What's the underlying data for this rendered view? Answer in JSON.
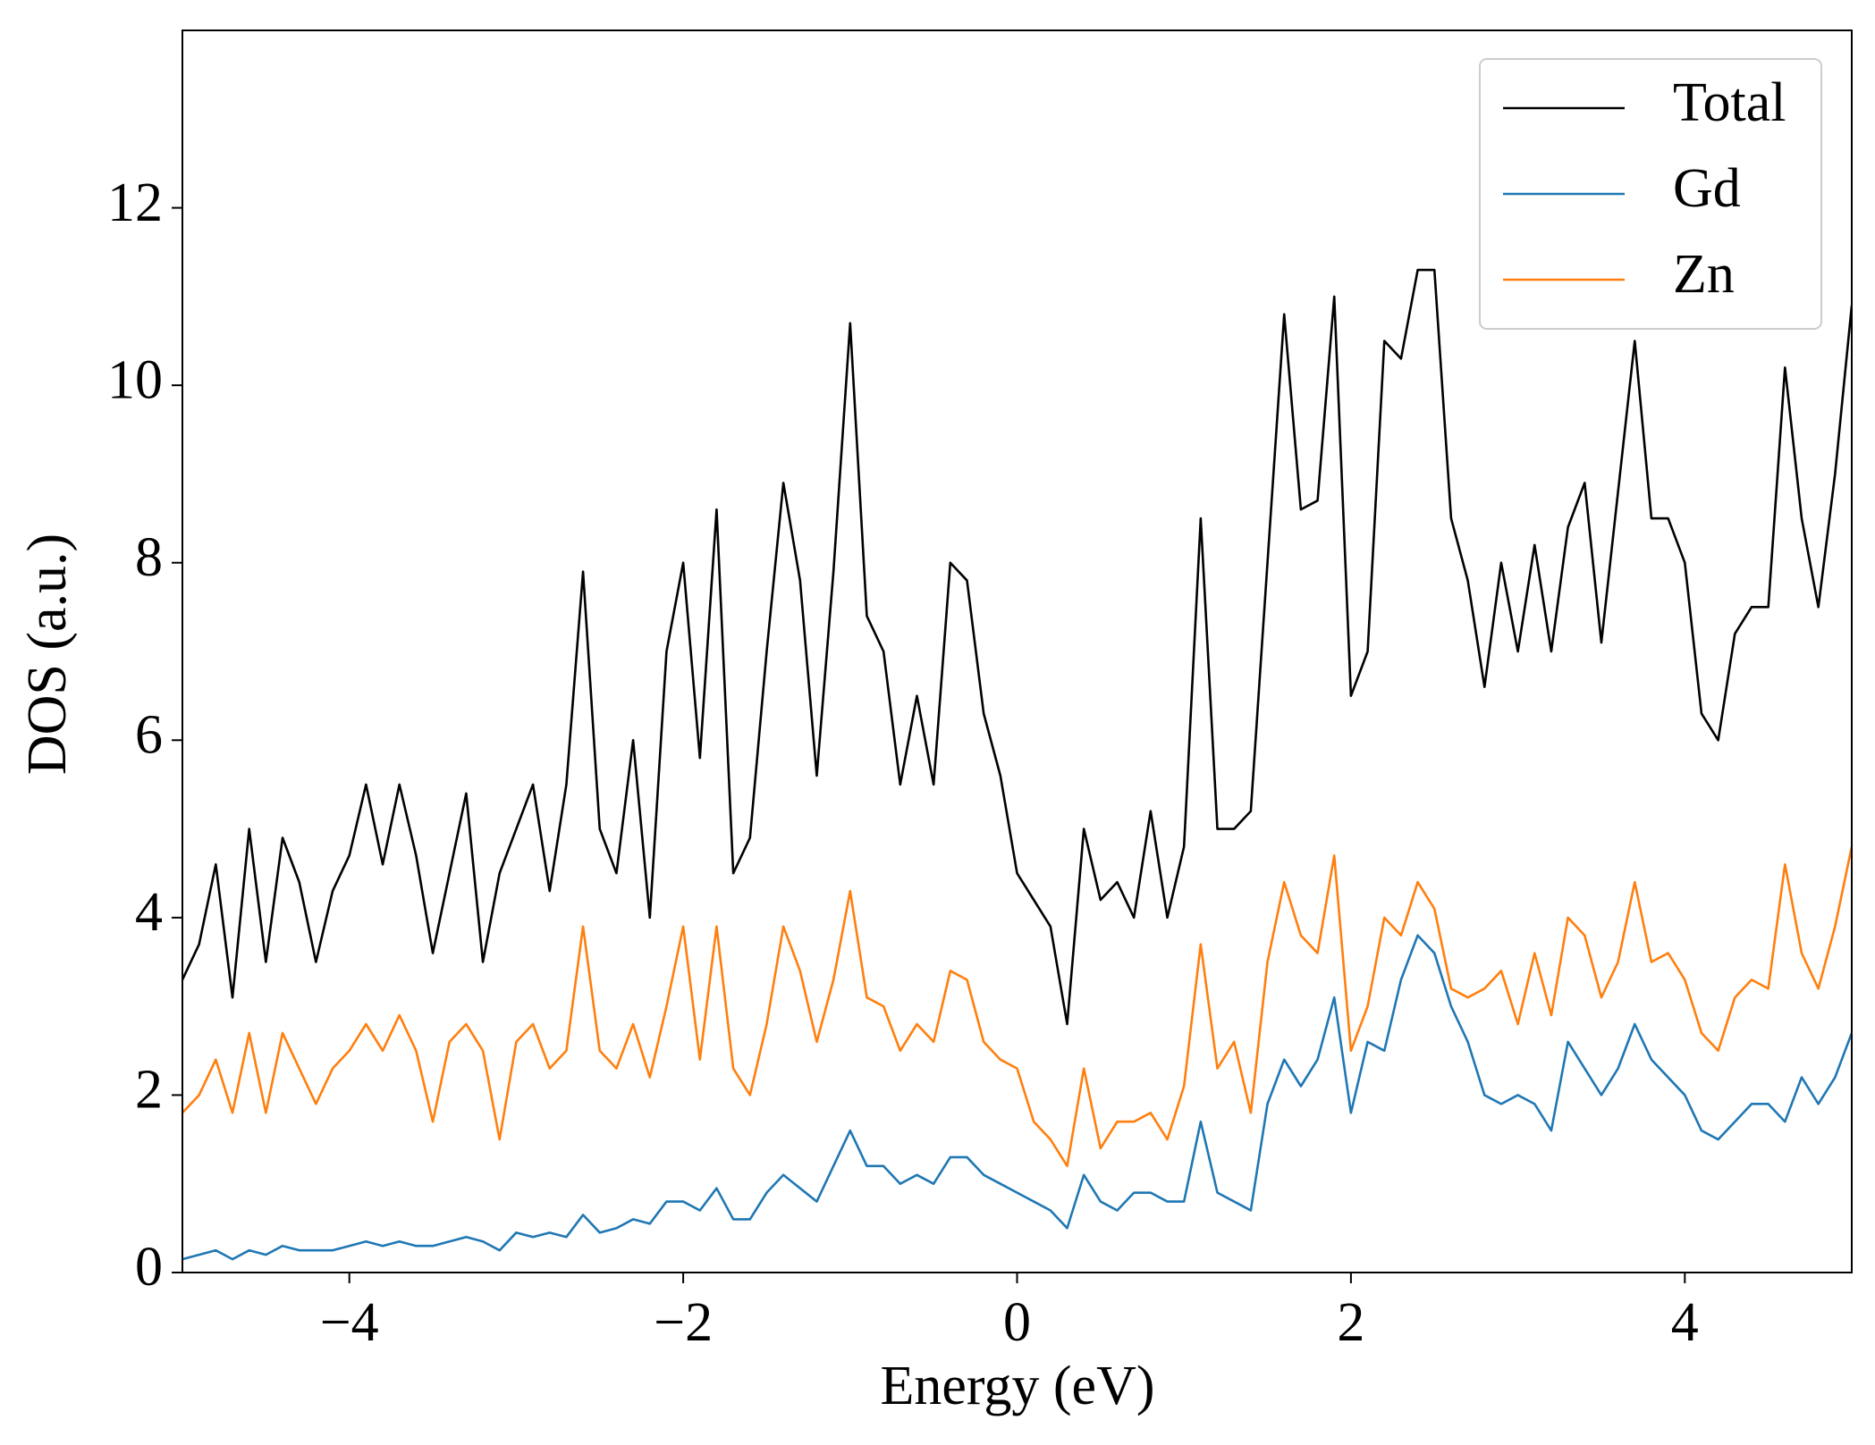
{
  "chart_data": {
    "type": "line",
    "xlabel": "Energy (eV)",
    "ylabel": "DOS (a.u.)",
    "x": [
      -5.0,
      -4.9,
      -4.8,
      -4.7,
      -4.6,
      -4.5,
      -4.4,
      -4.3,
      -4.2,
      -4.1,
      -4.0,
      -3.9,
      -3.8,
      -3.7,
      -3.6,
      -3.5,
      -3.4,
      -3.3,
      -3.2,
      -3.1,
      -3.0,
      -2.9,
      -2.8,
      -2.7,
      -2.6,
      -2.5,
      -2.4,
      -2.3,
      -2.2,
      -2.1,
      -2.0,
      -1.9,
      -1.8,
      -1.7,
      -1.6,
      -1.5,
      -1.4,
      -1.3,
      -1.2,
      -1.1,
      -1.0,
      -0.9,
      -0.8,
      -0.7,
      -0.6,
      -0.5,
      -0.4,
      -0.3,
      -0.2,
      -0.1,
      0.0,
      0.1,
      0.2,
      0.3,
      0.4,
      0.5,
      0.6,
      0.7,
      0.8,
      0.9,
      1.0,
      1.1,
      1.2,
      1.3,
      1.4,
      1.5,
      1.6,
      1.7,
      1.8,
      1.9,
      2.0,
      2.1,
      2.2,
      2.3,
      2.4,
      2.5,
      2.6,
      2.7,
      2.8,
      2.9,
      3.0,
      3.1,
      3.2,
      3.3,
      3.4,
      3.5,
      3.6,
      3.7,
      3.8,
      3.9,
      4.0,
      4.1,
      4.2,
      4.3,
      4.4,
      4.5,
      4.6,
      4.7,
      4.8,
      4.9,
      5.0
    ],
    "series": [
      {
        "name": "Total",
        "color": "#000000",
        "values": [
          3.3,
          3.7,
          4.6,
          3.1,
          5.0,
          3.5,
          4.9,
          4.4,
          3.5,
          4.3,
          4.7,
          5.5,
          4.6,
          5.5,
          4.7,
          3.6,
          4.5,
          5.4,
          3.5,
          4.5,
          5.0,
          5.5,
          4.3,
          5.5,
          7.9,
          5.0,
          4.5,
          6.0,
          4.0,
          7.0,
          8.0,
          5.8,
          8.6,
          4.5,
          4.9,
          7.0,
          8.9,
          7.8,
          5.6,
          7.9,
          10.7,
          7.4,
          7.0,
          5.5,
          6.5,
          5.5,
          8.0,
          7.8,
          6.3,
          5.6,
          4.5,
          4.2,
          3.9,
          2.8,
          5.0,
          4.2,
          4.4,
          4.0,
          5.2,
          4.0,
          4.8,
          8.5,
          5.0,
          5.0,
          5.2,
          8.0,
          10.8,
          8.6,
          8.7,
          11.0,
          6.5,
          7.0,
          10.5,
          10.3,
          11.3,
          11.3,
          8.5,
          7.8,
          6.6,
          8.0,
          7.0,
          8.2,
          7.0,
          8.4,
          8.9,
          7.1,
          8.8,
          10.5,
          8.5,
          8.5,
          8.0,
          6.3,
          6.0,
          7.2,
          7.5,
          7.5,
          10.2,
          8.5,
          7.5,
          9.0,
          10.9
        ]
      },
      {
        "name": "Gd",
        "color": "#1f77b4",
        "values": [
          0.15,
          0.2,
          0.25,
          0.15,
          0.25,
          0.2,
          0.3,
          0.25,
          0.25,
          0.25,
          0.3,
          0.35,
          0.3,
          0.35,
          0.3,
          0.3,
          0.35,
          0.4,
          0.35,
          0.25,
          0.45,
          0.4,
          0.45,
          0.4,
          0.65,
          0.45,
          0.5,
          0.6,
          0.55,
          0.8,
          0.8,
          0.7,
          0.95,
          0.6,
          0.6,
          0.9,
          1.1,
          0.95,
          0.8,
          1.2,
          1.6,
          1.2,
          1.2,
          1.0,
          1.1,
          1.0,
          1.3,
          1.3,
          1.1,
          1.0,
          0.9,
          0.8,
          0.7,
          0.5,
          1.1,
          0.8,
          0.7,
          0.9,
          0.9,
          0.8,
          0.8,
          1.7,
          0.9,
          0.8,
          0.7,
          1.9,
          2.4,
          2.1,
          2.4,
          3.1,
          1.8,
          2.6,
          2.5,
          3.3,
          3.8,
          3.6,
          3.0,
          2.6,
          2.0,
          1.9,
          2.0,
          1.9,
          1.6,
          2.6,
          2.3,
          2.0,
          2.3,
          2.8,
          2.4,
          2.2,
          2.0,
          1.6,
          1.5,
          1.7,
          1.9,
          1.9,
          1.7,
          2.2,
          1.9,
          2.2,
          2.7
        ]
      },
      {
        "name": "Zn",
        "color": "#ff7f0e",
        "values": [
          1.8,
          2.0,
          2.4,
          1.8,
          2.7,
          1.8,
          2.7,
          2.3,
          1.9,
          2.3,
          2.5,
          2.8,
          2.5,
          2.9,
          2.5,
          1.7,
          2.6,
          2.8,
          2.5,
          1.5,
          2.6,
          2.8,
          2.3,
          2.5,
          3.9,
          2.5,
          2.3,
          2.8,
          2.2,
          3.0,
          3.9,
          2.4,
          3.9,
          2.3,
          2.0,
          2.8,
          3.9,
          3.4,
          2.6,
          3.3,
          4.3,
          3.1,
          3.0,
          2.5,
          2.8,
          2.6,
          3.4,
          3.3,
          2.6,
          2.4,
          2.3,
          1.7,
          1.5,
          1.2,
          2.3,
          1.4,
          1.7,
          1.7,
          1.8,
          1.5,
          2.1,
          3.7,
          2.3,
          2.6,
          1.8,
          3.5,
          4.4,
          3.8,
          3.6,
          4.7,
          2.5,
          3.0,
          4.0,
          3.8,
          4.4,
          4.1,
          3.2,
          3.1,
          3.2,
          3.4,
          2.8,
          3.6,
          2.9,
          4.0,
          3.8,
          3.1,
          3.5,
          4.4,
          3.5,
          3.6,
          3.3,
          2.7,
          2.5,
          3.1,
          3.3,
          3.2,
          4.6,
          3.6,
          3.2,
          3.9,
          4.8
        ]
      }
    ],
    "xlim": [
      -5,
      5
    ],
    "ylim": [
      0,
      14
    ],
    "xticks": [
      {
        "value": -4,
        "label": "−4"
      },
      {
        "value": -2,
        "label": "−2"
      },
      0,
      2,
      4
    ],
    "yticks": [
      0,
      2,
      4,
      6,
      8,
      10,
      12
    ],
    "legend": "upper right",
    "grid": false
  }
}
